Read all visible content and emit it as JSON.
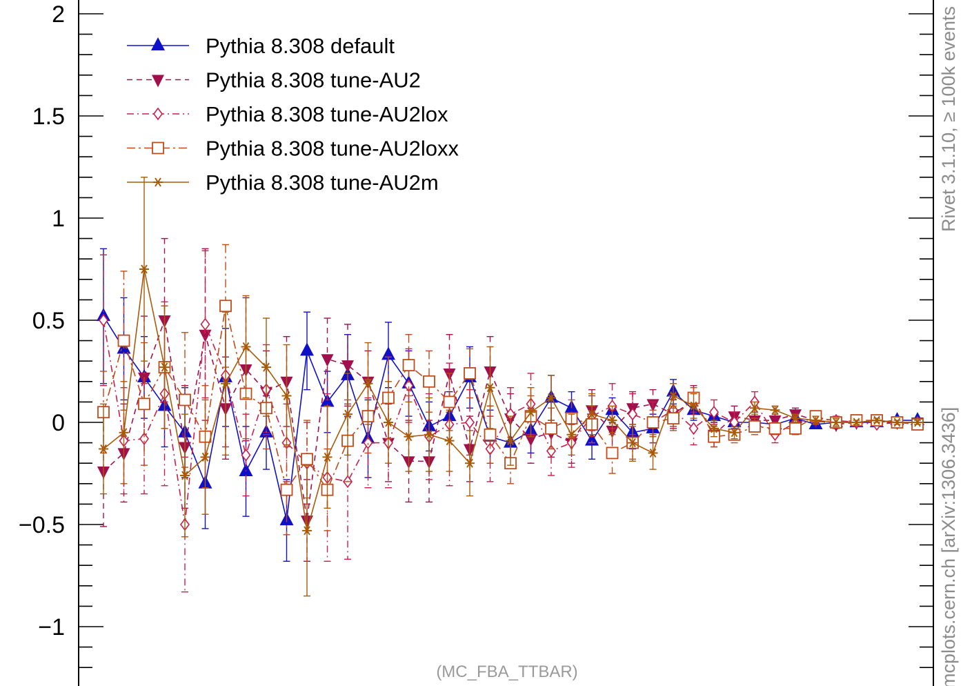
{
  "chart_data": {
    "type": "line",
    "ylim": [
      -1.25,
      2.05
    ],
    "yticks": [
      -1,
      -0.5,
      0,
      0.5,
      1,
      1.5,
      2
    ],
    "ytick_labels": [
      "−1",
      "−0.5",
      "0",
      "0.5",
      "1",
      "1.5",
      "2"
    ],
    "x_bins": 41,
    "legend_position": "top-left",
    "analysis_label": "(MC_FBA_TTBAR)",
    "side_label": "mcplots.cern.ch [arXiv:1306.3436]",
    "side_label_2": "Rivet 3.1.10, ≥ 100k events",
    "series": [
      {
        "name": "Pythia 8.308 default",
        "color": "#1010c8",
        "line": "solid",
        "marker": "triangle-up",
        "values": [
          0.52,
          0.36,
          0.22,
          0.08,
          -0.05,
          -0.3,
          0.22,
          -0.24,
          -0.05,
          -0.48,
          0.35,
          0.1,
          0.23,
          -0.08,
          0.33,
          0.19,
          -0.02,
          0.03,
          0.22,
          -0.07,
          -0.1,
          -0.04,
          0.12,
          0.07,
          -0.09,
          0.06,
          -0.05,
          -0.03,
          0.15,
          0.06,
          0.03,
          0.0,
          0.0,
          -0.01,
          0.02,
          -0.01,
          0.0,
          0.0,
          0.0,
          0.01,
          0.01
        ],
        "errors": [
          0.33,
          0.25,
          0.2,
          0.2,
          0.22,
          0.22,
          0.24,
          0.22,
          0.18,
          0.2,
          0.19,
          0.15,
          0.2,
          0.19,
          0.16,
          0.16,
          0.12,
          0.12,
          0.15,
          0.13,
          0.11,
          0.11,
          0.11,
          0.08,
          0.09,
          0.06,
          0.08,
          0.07,
          0.06,
          0.05,
          0.03,
          0.03,
          0.02,
          0.02,
          0.02,
          0.02,
          0.02,
          0.01,
          0.01,
          0.01,
          0.01
        ]
      },
      {
        "name": "Pythia 8.308 tune-AU2",
        "color": "#a0104c",
        "line": "dashed",
        "marker": "triangle-down",
        "values": [
          -0.24,
          -0.15,
          0.22,
          0.5,
          -0.12,
          0.43,
          0.07,
          0.26,
          0.15,
          0.2,
          -0.48,
          0.31,
          0.28,
          0.2,
          -0.1,
          -0.19,
          -0.19,
          0.24,
          -0.13,
          0.25,
          0.02,
          -0.08,
          -0.05,
          -0.1,
          0.06,
          -0.04,
          0.07,
          0.09,
          0.04,
          0.11,
          -0.06,
          0.03,
          0.01,
          0.01,
          0.04,
          0.01,
          -0.01,
          0.0,
          0.0,
          0.0,
          0.0
        ],
        "errors": [
          0.27,
          0.24,
          0.3,
          0.4,
          0.3,
          0.42,
          0.25,
          0.35,
          0.2,
          0.22,
          0.2,
          0.2,
          0.2,
          0.15,
          0.19,
          0.2,
          0.2,
          0.19,
          0.16,
          0.17,
          0.12,
          0.12,
          0.12,
          0.1,
          0.1,
          0.1,
          0.08,
          0.07,
          0.07,
          0.07,
          0.06,
          0.05,
          0.04,
          0.03,
          0.03,
          0.02,
          0.02,
          0.02,
          0.01,
          0.01,
          0.01
        ]
      },
      {
        "name": "Pythia 8.308 tune-AU2lox",
        "color": "#c81e4a",
        "line": "dashdot",
        "marker": "diamond-open",
        "values": [
          0.5,
          -0.09,
          -0.08,
          0.14,
          -0.5,
          0.48,
          0.23,
          -0.16,
          0.16,
          -0.1,
          -0.2,
          -0.27,
          -0.29,
          -0.1,
          -0.1,
          0.18,
          -0.07,
          -0.01,
          0.0,
          -0.13,
          0.04,
          0.09,
          -0.14,
          -0.1,
          0.03,
          0.08,
          0.04,
          0.0,
          0.06,
          -0.03,
          0.05,
          0.0,
          0.1,
          -0.06,
          0.0,
          0.02,
          0.01,
          0.0,
          -0.01,
          0.0,
          0.0
        ],
        "errors": [
          0.32,
          0.26,
          0.27,
          0.45,
          0.33,
          0.36,
          0.35,
          0.2,
          0.22,
          0.19,
          0.2,
          0.41,
          0.38,
          0.22,
          0.22,
          0.18,
          0.21,
          0.3,
          0.16,
          0.16,
          0.13,
          0.15,
          0.12,
          0.12,
          0.1,
          0.11,
          0.1,
          0.1,
          0.08,
          0.08,
          0.06,
          0.05,
          0.05,
          0.04,
          0.03,
          0.02,
          0.02,
          0.01,
          0.01,
          0.01,
          0.01
        ]
      },
      {
        "name": "Pythia 8.308 tune-AU2loxx",
        "color": "#c04a1a",
        "line": "dashdot2",
        "marker": "square-open",
        "values": [
          0.05,
          0.4,
          0.09,
          0.27,
          0.11,
          -0.07,
          0.57,
          0.14,
          0.07,
          -0.33,
          -0.18,
          -0.33,
          -0.09,
          0.03,
          0.12,
          0.28,
          0.2,
          0.1,
          0.24,
          -0.06,
          -0.2,
          0.03,
          -0.03,
          0.02,
          -0.01,
          -0.15,
          -0.1,
          0.0,
          0.02,
          0.12,
          -0.07,
          -0.06,
          -0.02,
          -0.03,
          -0.03,
          0.03,
          0.0,
          0.01,
          0.01,
          0.0,
          -0.01
        ],
        "errors": [
          0.2,
          0.34,
          0.3,
          0.3,
          0.33,
          0.25,
          0.3,
          0.22,
          0.2,
          0.22,
          0.19,
          0.2,
          0.2,
          0.18,
          0.2,
          0.15,
          0.15,
          0.14,
          0.12,
          0.14,
          0.1,
          0.1,
          0.1,
          0.09,
          0.09,
          0.1,
          0.08,
          0.06,
          0.06,
          0.05,
          0.05,
          0.04,
          0.04,
          0.03,
          0.03,
          0.02,
          0.02,
          0.01,
          0.01,
          0.01,
          0.01
        ]
      },
      {
        "name": "Pythia 8.308 tune-AU2m",
        "color": "#a85a08",
        "line": "solid",
        "marker": "star",
        "values": [
          -0.13,
          -0.05,
          0.75,
          0.27,
          -0.26,
          -0.17,
          0.19,
          0.37,
          0.27,
          0.13,
          -0.53,
          -0.17,
          0.04,
          0.19,
          0.0,
          -0.07,
          -0.06,
          -0.09,
          -0.2,
          0.17,
          -0.09,
          0.05,
          0.12,
          -0.06,
          0.04,
          0.01,
          -0.1,
          -0.15,
          0.13,
          0.08,
          -0.03,
          -0.05,
          0.07,
          0.06,
          0.02,
          0.01,
          0.0,
          0.0,
          0.01,
          0.0,
          0.0
        ],
        "errors": [
          0.22,
          0.25,
          0.45,
          0.3,
          0.3,
          0.28,
          0.35,
          0.25,
          0.24,
          0.25,
          0.32,
          0.25,
          0.2,
          0.2,
          0.2,
          0.17,
          0.18,
          0.15,
          0.16,
          0.2,
          0.12,
          0.12,
          0.11,
          0.1,
          0.1,
          0.07,
          0.09,
          0.08,
          0.06,
          0.06,
          0.04,
          0.03,
          0.03,
          0.02,
          0.02,
          0.02,
          0.02,
          0.01,
          0.01,
          0.01,
          0.01
        ]
      }
    ]
  }
}
